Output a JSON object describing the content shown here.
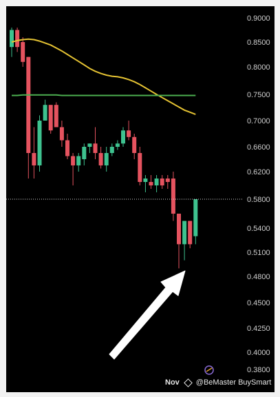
{
  "chart_data": {
    "type": "candlestick",
    "y_axis": {
      "position": "right",
      "ticks": [
        "0.9000",
        "0.8500",
        "0.8000",
        "0.7500",
        "0.7000",
        "0.6600",
        "0.6200",
        "0.5800",
        "0.5400",
        "0.5100",
        "0.4800",
        "0.4500",
        "0.4250",
        "0.4000",
        "0.3800"
      ]
    },
    "x_axis": {
      "visible_tick": "Nov"
    },
    "candles": [
      {
        "o": 0.84,
        "h": 0.88,
        "l": 0.82,
        "c": 0.875
      },
      {
        "o": 0.875,
        "h": 0.88,
        "l": 0.83,
        "c": 0.84
      },
      {
        "o": 0.85,
        "h": 0.86,
        "l": 0.8,
        "c": 0.81
      },
      {
        "o": 0.82,
        "h": 0.82,
        "l": 0.61,
        "c": 0.65
      },
      {
        "o": 0.65,
        "h": 0.69,
        "l": 0.61,
        "c": 0.63
      },
      {
        "o": 0.63,
        "h": 0.71,
        "l": 0.62,
        "c": 0.7
      },
      {
        "o": 0.7,
        "h": 0.74,
        "l": 0.7,
        "c": 0.73
      },
      {
        "o": 0.73,
        "h": 0.73,
        "l": 0.68,
        "c": 0.685
      },
      {
        "o": 0.73,
        "h": 0.735,
        "l": 0.69,
        "c": 0.69
      },
      {
        "o": 0.69,
        "h": 0.7,
        "l": 0.66,
        "c": 0.67
      },
      {
        "o": 0.67,
        "h": 0.68,
        "l": 0.64,
        "c": 0.645
      },
      {
        "o": 0.645,
        "h": 0.65,
        "l": 0.6,
        "c": 0.63
      },
      {
        "o": 0.63,
        "h": 0.65,
        "l": 0.62,
        "c": 0.645
      },
      {
        "o": 0.64,
        "h": 0.665,
        "l": 0.63,
        "c": 0.66
      },
      {
        "o": 0.66,
        "h": 0.665,
        "l": 0.65,
        "c": 0.665
      },
      {
        "o": 0.665,
        "h": 0.69,
        "l": 0.64,
        "c": 0.65
      },
      {
        "o": 0.65,
        "h": 0.66,
        "l": 0.625,
        "c": 0.63
      },
      {
        "o": 0.63,
        "h": 0.66,
        "l": 0.62,
        "c": 0.65
      },
      {
        "o": 0.65,
        "h": 0.665,
        "l": 0.645,
        "c": 0.66
      },
      {
        "o": 0.66,
        "h": 0.67,
        "l": 0.655,
        "c": 0.665
      },
      {
        "o": 0.665,
        "h": 0.69,
        "l": 0.66,
        "c": 0.685
      },
      {
        "o": 0.685,
        "h": 0.7,
        "l": 0.67,
        "c": 0.675
      },
      {
        "o": 0.675,
        "h": 0.68,
        "l": 0.64,
        "c": 0.65
      },
      {
        "o": 0.65,
        "h": 0.66,
        "l": 0.6,
        "c": 0.605
      },
      {
        "o": 0.605,
        "h": 0.615,
        "l": 0.59,
        "c": 0.61
      },
      {
        "o": 0.605,
        "h": 0.615,
        "l": 0.595,
        "c": 0.6
      },
      {
        "o": 0.6,
        "h": 0.615,
        "l": 0.59,
        "c": 0.61
      },
      {
        "o": 0.61,
        "h": 0.615,
        "l": 0.595,
        "c": 0.6
      },
      {
        "o": 0.61,
        "h": 0.615,
        "l": 0.595,
        "c": 0.605
      },
      {
        "o": 0.61,
        "h": 0.62,
        "l": 0.55,
        "c": 0.56
      },
      {
        "o": 0.56,
        "h": 0.56,
        "l": 0.49,
        "c": 0.52
      },
      {
        "o": 0.52,
        "h": 0.55,
        "l": 0.5,
        "c": 0.55
      },
      {
        "o": 0.55,
        "h": 0.55,
        "l": 0.515,
        "c": 0.52
      },
      {
        "o": 0.53,
        "h": 0.58,
        "l": 0.52,
        "c": 0.58
      }
    ],
    "moving_averages": [
      {
        "color": "#e5c333",
        "values": [
          0.85,
          0.853,
          0.855,
          0.856,
          0.855,
          0.852,
          0.848,
          0.844,
          0.838,
          0.832,
          0.825,
          0.818,
          0.811,
          0.804,
          0.797,
          0.792,
          0.788,
          0.785,
          0.783,
          0.782,
          0.78,
          0.777,
          0.773,
          0.768,
          0.762,
          0.756,
          0.75,
          0.744,
          0.738,
          0.732,
          0.726,
          0.72,
          0.716,
          0.712
        ]
      },
      {
        "color": "#4caf50",
        "values": [
          0.748,
          0.748,
          0.749,
          0.749,
          0.749,
          0.749,
          0.749,
          0.749,
          0.749,
          0.748,
          0.748,
          0.748,
          0.748,
          0.748,
          0.748,
          0.748,
          0.748,
          0.748,
          0.748,
          0.748,
          0.748,
          0.748,
          0.748,
          0.748,
          0.748,
          0.748,
          0.748,
          0.748,
          0.748,
          0.748,
          0.748,
          0.748,
          0.748,
          0.748
        ]
      }
    ],
    "last_price_line": 0.58,
    "colors": {
      "up": "#3ec28f",
      "down": "#e5535f",
      "background": "#000000"
    }
  },
  "annotation": {
    "arrow_color": "#ffffff"
  },
  "footer": {
    "month": "Nov",
    "brand": "@BeMaster BuySmart"
  }
}
